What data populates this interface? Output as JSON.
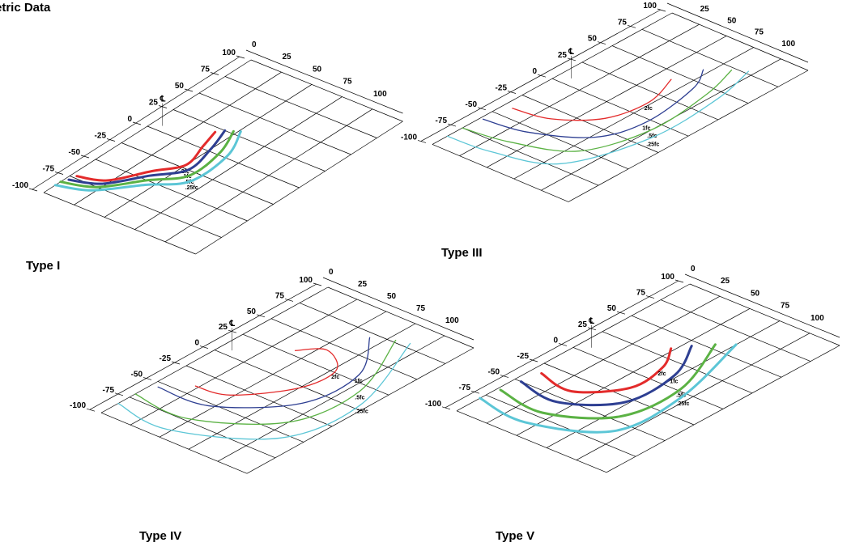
{
  "title": "etric Data",
  "colors": {
    "grid": "#000000",
    "2fc": "#e32b2b",
    "1fc": "#2e3f92",
    "0.5fc": "#5bb244",
    "0.25fc": "#5cc6d6"
  },
  "axis_ticks": {
    "top": [
      "0",
      "25",
      "50",
      "75",
      "100"
    ],
    "left": [
      "100",
      "75",
      "50",
      "25",
      "0",
      "-25",
      "-50",
      "-75",
      "-100"
    ]
  },
  "panels": [
    {
      "name": "Type I",
      "contours": [
        {
          "level": "2fc",
          "label": "2fc"
        },
        {
          "level": "1fc",
          "label": "1fc"
        },
        {
          "level": "0.5fc",
          "label": ".5fc"
        },
        {
          "level": "0.25fc",
          "label": ".25fc"
        }
      ]
    },
    {
      "name": "Type III",
      "contours": [
        {
          "level": "2fc",
          "label": "2fc"
        },
        {
          "level": "1fc",
          "label": "1fc"
        },
        {
          "level": "0.5fc",
          "label": ".5fc"
        },
        {
          "level": "0.25fc",
          "label": ".25fc"
        }
      ]
    },
    {
      "name": "Type IV",
      "contours": [
        {
          "level": "2fc",
          "label": "2fc"
        },
        {
          "level": "1fc",
          "label": "1fc"
        },
        {
          "level": "0.5fc",
          "label": ".5fc"
        },
        {
          "level": "0.25fc",
          "label": ".25fc"
        }
      ]
    },
    {
      "name": "Type V",
      "contours": [
        {
          "level": "2fc",
          "label": "2fc"
        },
        {
          "level": "1fc",
          "label": "1fc"
        },
        {
          "level": "0.5fc",
          "label": ".5fc"
        },
        {
          "level": "0.25fc",
          "label": ".25fc"
        }
      ]
    }
  ]
}
